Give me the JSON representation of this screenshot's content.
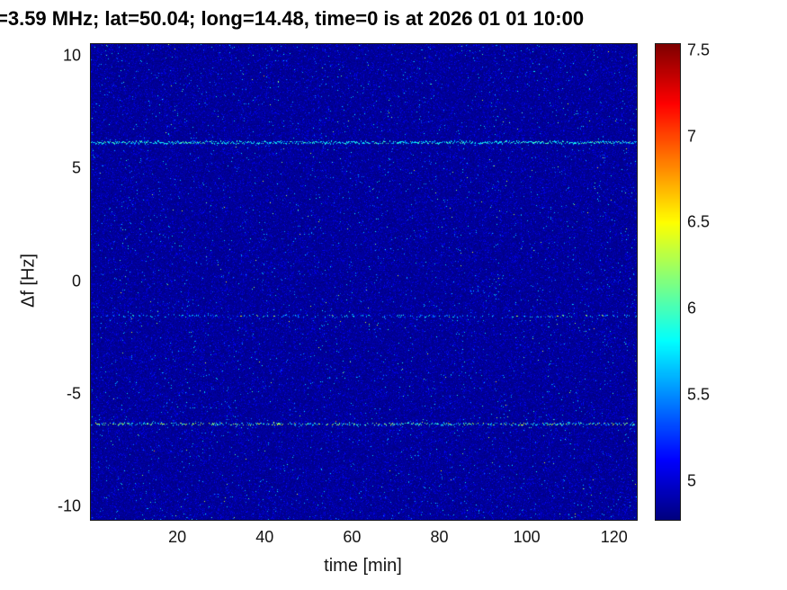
{
  "title": "=3.59 MHz;  lat=50.04; long=14.48, time=0 is at 2026 01 01 10:00",
  "chart_data": {
    "type": "heatmap",
    "title": "=3.59 MHz;  lat=50.04; long=14.48, time=0 is at 2026 01 01 10:00",
    "xlabel": "time [min]",
    "ylabel": "Δf [Hz]",
    "xlim": [
      0,
      125
    ],
    "ylim": [
      -10.56,
      10.56
    ],
    "clim": [
      4.78,
      7.54
    ],
    "colormap": "jet",
    "grid": false,
    "legend": "none (colorbar on right)",
    "x_ticks": [
      20,
      40,
      60,
      80,
      100,
      120
    ],
    "y_ticks": [
      10,
      5,
      0,
      -5,
      -10
    ],
    "colorbar_ticks": [
      5,
      5.5,
      6,
      6.5,
      7,
      7.5
    ],
    "background_value": 4.82,
    "noise": {
      "texture_probability": 0.15,
      "texture_boost": 0.3,
      "speckle_probability": 0.012,
      "speckle_boost": 0.7,
      "rare_probability": 0.0015,
      "rare_boost": 1.1
    },
    "features": [
      {
        "name": "doppler-trace-upper",
        "y_hz": 6.2,
        "density": 0.92,
        "value_range": [
          5.5,
          6.15
        ],
        "burst_density": 0.0,
        "description": "nearly continuous dashed cyan horizontal trace"
      },
      {
        "name": "doppler-trace-middle",
        "y_hz": -1.5,
        "density": 0.28,
        "value_range": [
          5.2,
          6.0
        ],
        "burst_density": 0.01,
        "description": "faint intermittent speckled horizontal trace"
      },
      {
        "name": "doppler-trace-lower",
        "y_hz": -6.3,
        "density": 0.6,
        "value_range": [
          5.3,
          6.5
        ],
        "burst_density": 0.06,
        "description": "intermittent speckled trace with green-yellow bursts"
      }
    ]
  },
  "colors": {
    "figure_background": "#ffffff",
    "axis_line": "#1a1a1a",
    "tick_label": "#141414",
    "heatmap_base": "#000087"
  }
}
